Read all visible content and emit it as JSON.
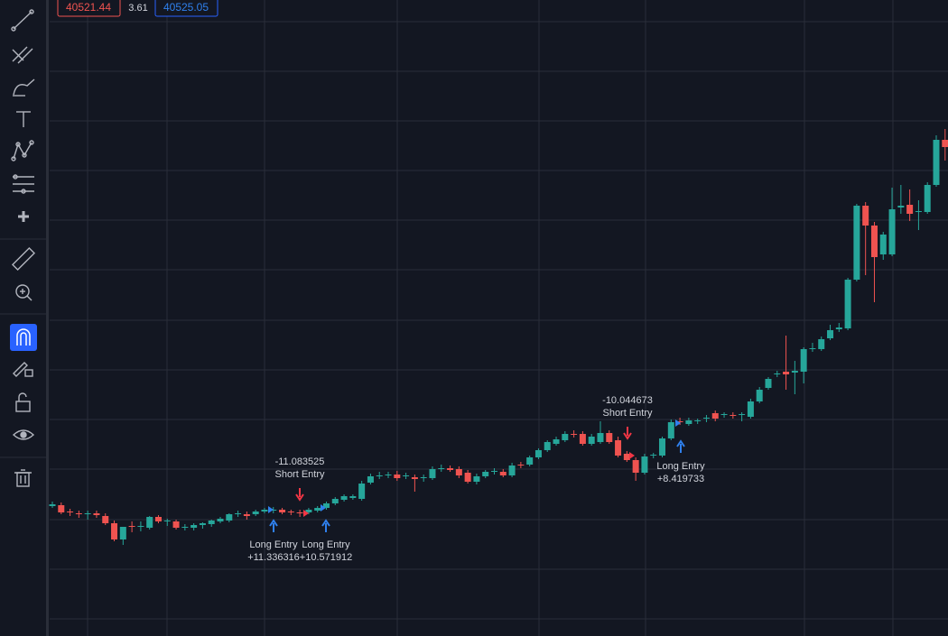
{
  "header": {
    "values": [
      "40521.44",
      "3.61",
      "40525.05"
    ]
  },
  "chart_data": {
    "type": "candlestick",
    "ylim": [
      705,
      0
    ],
    "up_color": "#26a69a",
    "down_color": "#ef5350",
    "ohlc": [
      [
        561,
        556,
        563,
        559
      ],
      [
        560,
        557,
        570,
        568
      ],
      [
        567,
        564,
        572,
        568
      ],
      [
        569,
        566,
        574,
        570
      ],
      [
        570,
        566,
        576,
        569
      ],
      [
        569,
        566,
        574,
        571
      ],
      [
        572,
        569,
        582,
        580
      ],
      [
        580,
        577,
        600,
        598
      ],
      [
        598,
        585,
        604,
        584
      ],
      [
        583,
        578,
        590,
        584
      ],
      [
        584,
        578,
        589,
        583
      ],
      [
        585,
        572,
        587,
        573
      ],
      [
        573,
        571,
        580,
        578
      ],
      [
        578,
        575,
        583,
        577
      ],
      [
        578,
        576,
        587,
        585
      ],
      [
        585,
        581,
        588,
        584
      ],
      [
        585,
        580,
        588,
        582
      ],
      [
        582,
        579,
        586,
        580
      ],
      [
        581,
        576,
        584,
        577
      ],
      [
        578,
        573,
        580,
        575
      ],
      [
        577,
        569,
        579,
        570
      ],
      [
        570,
        566,
        573,
        569
      ],
      [
        570,
        567,
        576,
        572
      ],
      [
        570,
        565,
        572,
        567
      ],
      [
        567,
        563,
        569,
        565
      ],
      [
        566,
        562,
        569,
        565
      ],
      [
        565,
        563,
        570,
        568
      ],
      [
        567,
        565,
        571,
        568
      ],
      [
        568,
        565,
        573,
        569
      ],
      [
        568,
        563,
        570,
        565
      ],
      [
        566,
        561,
        568,
        563
      ],
      [
        563,
        556,
        565,
        558
      ],
      [
        558,
        551,
        560,
        553
      ],
      [
        554,
        548,
        556,
        550
      ],
      [
        552,
        548,
        554,
        550
      ],
      [
        553,
        533,
        555,
        536
      ],
      [
        535,
        525,
        537,
        528
      ],
      [
        528,
        523,
        531,
        527
      ],
      [
        527,
        523,
        530,
        526
      ],
      [
        526,
        522,
        533,
        530
      ],
      [
        528,
        524,
        531,
        527
      ],
      [
        529,
        526,
        545,
        531
      ],
      [
        530,
        526,
        534,
        529
      ],
      [
        530,
        517,
        532,
        520
      ],
      [
        520,
        515,
        523,
        519
      ],
      [
        519,
        516,
        523,
        521
      ],
      [
        520,
        517,
        530,
        527
      ],
      [
        524,
        521,
        536,
        534
      ],
      [
        534,
        525,
        537,
        528
      ],
      [
        528,
        521,
        530,
        523
      ],
      [
        523,
        519,
        526,
        522
      ],
      [
        523,
        520,
        529,
        527
      ],
      [
        527,
        513,
        529,
        516
      ],
      [
        515,
        512,
        519,
        516
      ],
      [
        515,
        505,
        517,
        507
      ],
      [
        507,
        497,
        509,
        499
      ],
      [
        499,
        488,
        501,
        490
      ],
      [
        492,
        484,
        494,
        487
      ],
      [
        488,
        478,
        490,
        481
      ],
      [
        481,
        477,
        485,
        482
      ],
      [
        481,
        478,
        494,
        492
      ],
      [
        492,
        481,
        494,
        484
      ],
      [
        490,
        467,
        492,
        480
      ],
      [
        480,
        477,
        492,
        490
      ],
      [
        488,
        484,
        507,
        505
      ],
      [
        503,
        500,
        512,
        510
      ],
      [
        510,
        507,
        533,
        524
      ],
      [
        524,
        503,
        526,
        506
      ],
      [
        505,
        502,
        508,
        504
      ],
      [
        505,
        484,
        507,
        486
      ],
      [
        486,
        465,
        488,
        468
      ],
      [
        467,
        463,
        471,
        468
      ],
      [
        470,
        463,
        472,
        466
      ],
      [
        467,
        464,
        470,
        466
      ],
      [
        464,
        460,
        468,
        463
      ],
      [
        458,
        455,
        467,
        464
      ],
      [
        460,
        457,
        463,
        459
      ],
      [
        460,
        457,
        464,
        461
      ],
      [
        460,
        457,
        467,
        459
      ],
      [
        462,
        442,
        464,
        445
      ],
      [
        445,
        429,
        447,
        432
      ],
      [
        430,
        418,
        432,
        420
      ],
      [
        415,
        411,
        418,
        414
      ],
      [
        412,
        372,
        432,
        415
      ],
      [
        413,
        400,
        437,
        411
      ],
      [
        412,
        385,
        425,
        387
      ],
      [
        387,
        380,
        390,
        386
      ],
      [
        387,
        373,
        389,
        376
      ],
      [
        375,
        360,
        377,
        366
      ],
      [
        365,
        358,
        368,
        363
      ],
      [
        364,
        308,
        366,
        310
      ],
      [
        310,
        226,
        312,
        228
      ],
      [
        228,
        224,
        305,
        250
      ],
      [
        250,
        246,
        335,
        285
      ],
      [
        282,
        257,
        288,
        260
      ],
      [
        282,
        208,
        284,
        232
      ],
      [
        230,
        205,
        237,
        228
      ],
      [
        227,
        210,
        245,
        237
      ],
      [
        235,
        222,
        255,
        234
      ],
      [
        235,
        202,
        237,
        205
      ],
      [
        205,
        150,
        207,
        155
      ],
      [
        155,
        143,
        178,
        163
      ]
    ],
    "signals": [
      {
        "name": "Short Entry",
        "result": "-11.083525",
        "side": "short"
      },
      {
        "name": "Long Entry",
        "result": "+11.336316",
        "side": "long"
      },
      {
        "name": "Long Entry",
        "result": "+10.571912",
        "side": "long"
      },
      {
        "name": "Short Entry",
        "result": "-10.044673",
        "side": "short"
      },
      {
        "name": "Long Entry",
        "result": "+8.419733",
        "side": "long"
      }
    ]
  }
}
